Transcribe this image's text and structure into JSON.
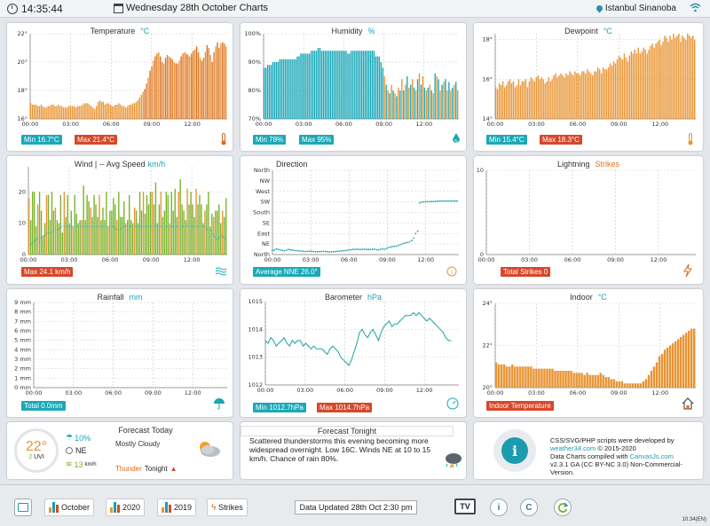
{
  "header": {
    "time": "14:35:44",
    "title": "Wednesday 28th October Charts",
    "location": "Istanbul Sinanoba"
  },
  "panels": {
    "temperature": {
      "title": "Temperature",
      "unit": "°C",
      "min": "Min 16.7°C",
      "max": "Max 21.4°C"
    },
    "humidity": {
      "title": "Humidity",
      "unit": "%",
      "min": "Min 78%",
      "max": "Max 95%"
    },
    "dewpoint": {
      "title": "Dewpoint",
      "unit": "°C",
      "min": "Min 15.4°C",
      "max": "Max 18.3°C"
    },
    "wind": {
      "title": "Wind | -- Avg Speed",
      "unit": "km/h",
      "max": "Max 24.1 km/h"
    },
    "direction": {
      "title": "Direction",
      "avg": "Average NNE 26.0°"
    },
    "lightning": {
      "title": "Lightning",
      "unit": "Strikes",
      "total": "Total Strikes 0"
    },
    "rainfall": {
      "title": "Rainfall",
      "unit": "mm",
      "total": "Total 0.0mm"
    },
    "barometer": {
      "title": "Barometer",
      "unit": "hPa",
      "min": "Min 1012.7hPa",
      "max": "Max 1014.7hPa"
    },
    "indoor": {
      "title": "Indoor",
      "unit": "°C",
      "label": "Indoor Temperature"
    }
  },
  "forecast_today": {
    "title": "Forecast Today",
    "temp": "22°",
    "uvi_value": "2",
    "uvi_label": "UVI",
    "rain_chance": "10%",
    "wind_dir": "NE",
    "wind_speed": "13",
    "wind_unit": "km/h",
    "summary": "Mostly Cloudy",
    "thunder": "Thunder",
    "tonight": "Tonight"
  },
  "forecast_tonight": {
    "title": "Forecast Tonight",
    "text": "Scattered thunderstorms this evening becoming more widespread overnight. Low 16C. Winds NE at 10 to 15 km/h. Chance of rain 80%."
  },
  "credits": {
    "line1": "CSS/SVG/PHP scripts were developed by",
    "line2": "weather34.com",
    "line2b": "© 2015-2020",
    "line3": "Data Charts compiled with",
    "line3b": "CanvasJs.com",
    "line4": "v2.3.1 GA (CC BY-NC 3.0) Non-Commercial-Version."
  },
  "footer": {
    "october": "October",
    "y2020": "2020",
    "y2019": "2019",
    "strikes": "Strikes",
    "updated": "Data Updated 28th Oct 2:30 pm",
    "tv": "TV",
    "info": "i",
    "copyright": "C",
    "version": "10.34(EN)"
  },
  "colors": {
    "orange": "#e89433",
    "darkorange": "#d96a1f",
    "cyan": "#16a6b6",
    "green": "#7ab22a",
    "teal": "#1c9fa8"
  },
  "chart_data": [
    {
      "type": "bar",
      "title": "Temperature",
      "x_ticks": [
        "00:00",
        "03:00",
        "06:00",
        "09:00",
        "12:00"
      ],
      "y_ticks": [
        "16°",
        "18°",
        "20°",
        "22°"
      ],
      "ylim": [
        16,
        22
      ],
      "values": [
        17.1,
        17.0,
        17.0,
        17.0,
        16.9,
        16.9,
        17.0,
        16.9,
        16.8,
        16.8,
        16.9,
        16.9,
        17.0,
        17.0,
        16.9,
        16.9,
        17.0,
        16.9,
        16.9,
        16.8,
        16.8,
        16.8,
        16.9,
        16.9,
        16.9,
        16.9,
        16.8,
        16.9,
        16.9,
        16.9,
        17.0,
        17.1,
        17.1,
        17.1,
        17.0,
        16.9,
        16.8,
        16.7,
        16.9,
        17.2,
        17.3,
        17.2,
        17.2,
        17.0,
        17.1,
        17.1,
        17.0,
        16.9,
        16.9,
        17.0,
        17.0,
        17.1,
        17.0,
        16.9,
        16.9,
        16.8,
        16.9,
        17.0,
        17.0,
        17.1,
        17.1,
        17.2,
        17.3,
        17.5,
        17.7,
        17.9,
        18.1,
        18.5,
        18.9,
        19.4,
        19.7,
        20.1,
        20.4,
        20.6,
        20.7,
        20.4,
        20.0,
        19.9,
        20.3,
        20.5,
        20.4,
        20.3,
        20.2,
        20.0,
        19.9,
        19.9,
        20.1,
        20.4,
        20.6,
        20.7,
        20.6,
        20.5,
        20.4,
        20.6,
        20.8,
        20.9,
        21.1,
        20.7,
        20.3,
        20.1,
        20.3,
        20.7,
        21.2,
        21.0,
        20.5,
        20.0,
        20.7,
        21.1,
        21.4,
        21.0,
        21.3,
        21.4,
        21.3,
        21.1
      ]
    },
    {
      "type": "bar",
      "title": "Humidity",
      "x_ticks": [
        "00:00",
        "03:00",
        "06:00",
        "09:00",
        "12:00"
      ],
      "y_ticks": [
        "70%",
        "80%",
        "90%",
        "100%"
      ],
      "ylim": [
        70,
        100
      ],
      "values": [
        88,
        88,
        89,
        89,
        89,
        90,
        90,
        90,
        90,
        91,
        91,
        91,
        91,
        91,
        91,
        91,
        91,
        91,
        91,
        92,
        92,
        93,
        93,
        93,
        93,
        93,
        93,
        94,
        94,
        94,
        94,
        95,
        95,
        94,
        94,
        94,
        94,
        94,
        94,
        94,
        94,
        94,
        94,
        94,
        94,
        94,
        94,
        94,
        93,
        93,
        94,
        94,
        94,
        94,
        94,
        94,
        94,
        94,
        94,
        94,
        94,
        94,
        94,
        94,
        92,
        92,
        92,
        90,
        88,
        85,
        82,
        80,
        79,
        82,
        80,
        79,
        78,
        81,
        80,
        84,
        80,
        82,
        85,
        81,
        82,
        84,
        81,
        80,
        84,
        86,
        82,
        85,
        81,
        80,
        81,
        82,
        80,
        79,
        86,
        85,
        84,
        80,
        82,
        83,
        84,
        80,
        83,
        80,
        81,
        82,
        83,
        80
      ]
    },
    {
      "type": "bar",
      "title": "Dewpoint",
      "x_ticks": [
        "00:00",
        "03:00",
        "06:00",
        "09:00",
        "12:00"
      ],
      "y_ticks": [
        "14°",
        "16°",
        "18°"
      ],
      "ylim": [
        14,
        18.3
      ],
      "values": [
        15.6,
        15.5,
        15.8,
        15.7,
        15.9,
        15.6,
        15.7,
        15.9,
        16.0,
        15.8,
        15.9,
        15.6,
        15.7,
        16.0,
        15.7,
        15.9,
        15.9,
        16.0,
        15.6,
        15.9,
        16.1,
        16.0,
        15.9,
        16.1,
        16.2,
        16.0,
        16.1,
        16.0,
        15.8,
        15.9,
        16.1,
        15.9,
        16.0,
        16.2,
        16.3,
        16.1,
        16.2,
        16.3,
        16.2,
        16.1,
        16.3,
        16.2,
        16.4,
        16.3,
        16.2,
        16.4,
        16.3,
        16.3,
        16.2,
        16.4,
        16.4,
        16.3,
        16.5,
        16.4,
        16.3,
        16.2,
        16.4,
        16.4,
        16.6,
        16.5,
        16.3,
        16.6,
        16.5,
        16.5,
        16.6,
        16.8,
        16.7,
        16.9,
        16.8,
        17.0,
        17.2,
        17.1,
        17.0,
        17.3,
        17.1,
        16.9,
        17.2,
        17.4,
        17.3,
        17.5,
        17.3,
        17.6,
        17.3,
        17.4,
        17.6,
        17.5,
        17.3,
        17.5,
        17.7,
        17.8,
        17.6,
        17.8,
        17.9,
        18.0,
        17.7,
        17.9,
        18.2,
        18.1,
        17.9,
        18.2,
        18.0,
        18.3,
        18.1,
        18.2,
        18.3,
        17.9,
        18.2,
        18.1,
        18.0,
        18.3,
        18.2,
        18.1,
        18.2,
        18.0
      ]
    },
    {
      "type": "bar",
      "title": "Wind | -- Avg Speed",
      "x_ticks": [
        "00:00",
        "03:00",
        "06:00",
        "09:00",
        "12:00"
      ],
      "y_ticks": [
        "0",
        "10",
        "20"
      ],
      "ylim": [
        0,
        28
      ],
      "values": [
        18,
        11,
        20,
        20,
        9,
        16,
        20,
        14,
        6,
        10,
        19,
        19,
        11,
        20,
        14,
        15,
        11,
        10,
        19,
        7,
        20,
        12,
        19,
        10,
        14,
        9,
        19,
        13,
        10,
        11,
        11,
        22,
        11,
        19,
        17,
        15,
        12,
        19,
        16,
        12,
        19,
        11,
        15,
        11,
        20,
        9,
        14,
        14,
        18,
        16,
        11,
        20,
        12,
        12,
        17,
        10,
        11,
        19,
        11,
        10,
        15,
        14,
        10,
        20,
        14,
        20,
        13,
        19,
        16,
        20,
        20,
        16,
        23,
        10,
        16,
        20,
        12,
        14,
        20,
        19,
        10,
        20,
        14,
        21,
        12,
        20,
        24,
        16,
        14,
        11,
        21,
        16,
        20,
        16,
        12,
        21,
        16,
        19,
        16,
        10,
        14,
        16,
        20,
        9,
        13,
        12,
        14,
        14,
        16,
        10,
        14,
        12,
        18
      ],
      "avg": [
        3,
        3,
        4,
        4,
        5,
        5,
        5,
        6,
        6,
        6,
        7,
        7,
        7,
        7,
        8,
        8,
        8,
        8,
        9,
        9,
        9,
        9,
        9,
        9,
        9,
        9,
        9,
        9,
        9,
        9,
        9,
        9,
        9,
        9,
        9,
        9,
        9,
        9,
        9,
        9,
        9,
        9,
        9,
        9,
        9,
        9,
        9,
        9,
        9,
        8,
        8,
        8,
        8,
        9,
        9,
        9,
        9,
        9,
        9,
        9,
        9,
        9,
        9,
        9,
        9,
        9,
        9,
        9,
        9,
        9,
        9,
        9,
        9,
        9,
        9,
        9,
        9,
        9,
        9,
        9,
        9,
        9,
        9,
        9,
        9,
        9,
        9,
        9,
        9,
        9,
        9,
        9,
        9,
        9,
        9,
        9,
        9,
        9,
        9,
        9,
        9,
        8,
        8,
        8,
        7,
        6,
        5,
        5,
        5,
        6,
        6,
        5,
        5
      ]
    },
    {
      "type": "scatter",
      "title": "Direction",
      "x_ticks": [
        "00:00",
        "03:00",
        "06:00",
        "09:00",
        "12:00"
      ],
      "y_ticks": [
        "North",
        "NE",
        "East",
        "SE",
        "South",
        "SW",
        "West",
        "NW",
        "North"
      ],
      "ylim": [
        0,
        360
      ],
      "values": [
        18,
        20,
        24,
        22,
        20,
        18,
        15,
        18,
        22,
        20,
        20,
        18,
        17,
        16,
        15,
        15,
        14,
        13,
        14,
        14,
        14,
        13,
        12,
        12,
        13,
        13,
        14,
        13,
        12,
        11,
        12,
        12,
        13,
        14,
        14,
        15,
        16,
        17,
        18,
        20,
        20,
        22,
        22,
        23,
        22,
        22,
        22,
        23,
        22,
        22,
        22,
        22,
        23,
        21,
        20,
        22,
        25,
        22,
        26,
        30,
        32,
        34,
        35,
        36,
        38,
        42,
        45,
        48,
        50,
        52,
        55,
        60,
        70,
        90,
        100,
        220,
        224,
        225,
        226,
        226,
        226,
        227,
        227,
        227,
        228,
        228,
        228,
        229,
        229,
        229,
        229,
        229,
        229,
        229,
        229
      ]
    },
    {
      "type": "line",
      "title": "Lightning",
      "x_ticks": [
        "00:00",
        "03:00",
        "06:00",
        "09:00",
        "12:00"
      ],
      "y_ticks": [
        "0",
        "10"
      ],
      "values": []
    },
    {
      "type": "bar",
      "title": "Rainfall",
      "x_ticks": [
        "00:00",
        "03:00",
        "06:00",
        "09:00",
        "12:00"
      ],
      "y_ticks": [
        "0 mm",
        "1 mm",
        "2 mm",
        "3 mm",
        "4 mm",
        "5 mm",
        "6 mm",
        "7 mm",
        "8 mm",
        "9 mm"
      ],
      "ylim": [
        0,
        9
      ],
      "values": []
    },
    {
      "type": "line",
      "title": "Barometer",
      "x_ticks": [
        "00:00",
        "03:00",
        "06:00",
        "09:00",
        "12:00"
      ],
      "y_ticks": [
        "1012",
        "1013",
        "1014",
        "1015"
      ],
      "ylim": [
        1012,
        1015
      ],
      "values": [
        1013.6,
        1013.5,
        1013.7,
        1013.6,
        1013.4,
        1013.5,
        1013.6,
        1013.7,
        1013.5,
        1013.4,
        1013.6,
        1013.5,
        1013.6,
        1013.6,
        1013.4,
        1013.5,
        1013.4,
        1013.3,
        1013.4,
        1013.3,
        1013.3,
        1013.3,
        1013.2,
        1013.1,
        1013.3,
        1013.4,
        1013.3,
        1013.2,
        1013.0,
        1012.9,
        1012.8,
        1012.7,
        1012.9,
        1013.2,
        1013.5,
        1013.9,
        1014.0,
        1013.8,
        1013.7,
        1013.9,
        1014.0,
        1013.8,
        1013.6,
        1013.9,
        1014.1,
        1014.2,
        1014.3,
        1014.1,
        1014.2,
        1014.2,
        1014.3,
        1014.4,
        1014.5,
        1014.5,
        1014.5,
        1014.6,
        1014.5,
        1014.6,
        1014.5,
        1014.4,
        1014.3,
        1014.4,
        1014.3,
        1014.2,
        1014.1,
        1014.0,
        1013.9,
        1013.7,
        1013.6,
        1013.6
      ]
    },
    {
      "type": "bar",
      "title": "Indoor",
      "x_ticks": [
        "00:00",
        "03:00",
        "06:00",
        "09:00",
        "12:00"
      ],
      "y_ticks": [
        "20°",
        "22°",
        "24°"
      ],
      "ylim": [
        20,
        24
      ],
      "values": [
        21.2,
        21.1,
        21.1,
        21.1,
        21.0,
        21.0,
        21.1,
        21.0,
        21.0,
        21.0,
        21.0,
        21.0,
        21.0,
        21.0,
        20.9,
        20.9,
        20.9,
        20.9,
        20.9,
        20.9,
        20.9,
        20.9,
        20.8,
        20.8,
        20.8,
        20.8,
        20.8,
        20.8,
        20.8,
        20.7,
        20.7,
        20.7,
        20.7,
        20.6,
        20.7,
        20.6,
        20.6,
        20.6,
        20.6,
        20.7,
        20.6,
        20.5,
        20.5,
        20.4,
        20.4,
        20.3,
        20.3,
        20.3,
        20.2,
        20.2,
        20.2,
        20.2,
        20.2,
        20.2,
        20.2,
        20.3,
        20.4,
        20.6,
        20.8,
        21.0,
        21.2,
        21.5,
        21.6,
        21.8,
        21.9,
        22.0,
        22.1,
        22.2,
        22.3,
        22.4,
        22.5,
        22.6,
        22.7,
        22.8,
        22.8
      ]
    }
  ]
}
